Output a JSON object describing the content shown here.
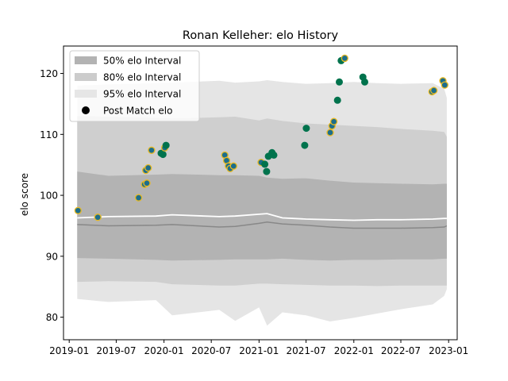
{
  "chart_data": {
    "type": "scatter",
    "title": "Ronan Kelleher: elo History",
    "xlabel": "",
    "ylabel": "elo score",
    "xlim": [
      "2018-12-10",
      "2023-02-03"
    ],
    "ylim": [
      76.3,
      124.5
    ],
    "x_ticks": [
      "2019-01-01",
      "2019-07-01",
      "2020-01-01",
      "2020-07-01",
      "2021-01-01",
      "2021-07-01",
      "2022-01-01",
      "2022-07-01",
      "2023-01-01"
    ],
    "x_tick_labels": [
      "2019-01",
      "2019-07",
      "2020-01",
      "2020-07",
      "2021-01",
      "2021-07",
      "2022-01",
      "2022-07",
      "2023-01"
    ],
    "y_ticks": [
      80,
      90,
      100,
      110,
      120
    ],
    "y_tick_labels": [
      "80",
      "90",
      "100",
      "110",
      "120"
    ],
    "grid": false,
    "legend_position": "top-left",
    "legend": [
      {
        "label": "50% elo Interval",
        "kind": "patch",
        "color": "#b3b3b3"
      },
      {
        "label": "80% elo Interval",
        "kind": "patch",
        "color": "#cccccc"
      },
      {
        "label": "95% elo Interval",
        "kind": "patch",
        "color": "#e6e6e6"
      },
      {
        "label": "Post Match elo",
        "kind": "marker",
        "color": "#000000"
      }
    ],
    "colors": {
      "band50": "#b3b3b3",
      "band80": "#cfcfcf",
      "band95": "#e5e5e5",
      "median_line": "#888888",
      "mean_line": "#ffffff",
      "point_fill_home": "#00734d",
      "point_fill_away": "#1c6e8c",
      "point_edge_away": "#e8b923"
    },
    "band_dates": [
      "2019-02-01",
      "2019-06-01",
      "2019-12-01",
      "2020-02-01",
      "2020-08-01",
      "2020-10-01",
      "2021-01-01",
      "2021-02-01",
      "2021-04-01",
      "2021-07-01",
      "2021-10-01",
      "2022-01-01",
      "2022-04-01",
      "2022-07-01",
      "2022-11-01",
      "2022-12-15",
      "2022-12-25"
    ],
    "band95_upper": [
      118,
      118.2,
      118.4,
      118.5,
      118.8,
      118.5,
      118.7,
      118.9,
      118.6,
      118.3,
      118.4,
      118.6,
      118.4,
      118.3,
      118.4,
      117.5,
      116
    ],
    "band95_lower": [
      83,
      82.5,
      82.8,
      80.3,
      81.2,
      79.4,
      81.6,
      78.6,
      80.8,
      80.3,
      79.3,
      79.9,
      80.6,
      81.3,
      82.1,
      83.5,
      84.6
    ],
    "band80_upper": [
      113,
      112.9,
      112.7,
      112.6,
      112.8,
      112.9,
      112.3,
      112.6,
      112.2,
      111.8,
      111.6,
      111.4,
      111.2,
      110.9,
      110.6,
      110.4,
      109.6
    ],
    "band80_lower": [
      85.8,
      85.9,
      85.8,
      85.4,
      85.2,
      85.2,
      85.5,
      85.5,
      85.4,
      85.3,
      85.2,
      85.2,
      85.1,
      85.2,
      85.2,
      85.2,
      85.2
    ],
    "band50_upper": [
      103.9,
      103.2,
      103.4,
      103.5,
      103.3,
      103.3,
      103.2,
      102.9,
      102.7,
      102.8,
      102.4,
      102.1,
      102.0,
      101.9,
      101.8,
      101.9,
      101.9
    ],
    "band50_lower": [
      89.7,
      89.6,
      89.4,
      89.3,
      89.4,
      89.5,
      89.5,
      89.5,
      89.6,
      89.4,
      89.3,
      89.4,
      89.4,
      89.5,
      89.5,
      89.6,
      89.6
    ],
    "mean_line": [
      96.3,
      96.5,
      96.6,
      96.8,
      96.5,
      96.6,
      96.9,
      97.0,
      96.3,
      96.1,
      96.0,
      95.9,
      96.0,
      96.0,
      96.1,
      96.2,
      96.2
    ],
    "median_line": [
      95.2,
      95.0,
      95.1,
      95.2,
      94.8,
      94.9,
      95.4,
      95.6,
      95.3,
      95.1,
      94.8,
      94.6,
      94.6,
      94.6,
      94.7,
      94.8,
      95.0
    ],
    "points": [
      {
        "x": "2019-02-04",
        "y": 97.5,
        "group": "away"
      },
      {
        "x": "2019-04-21",
        "y": 96.4,
        "group": "away"
      },
      {
        "x": "2019-09-25",
        "y": 99.6,
        "group": "away"
      },
      {
        "x": "2019-10-18",
        "y": 101.8,
        "group": "away"
      },
      {
        "x": "2019-10-23",
        "y": 104.1,
        "group": "away"
      },
      {
        "x": "2019-10-27",
        "y": 102.0,
        "group": "away"
      },
      {
        "x": "2019-11-01",
        "y": 104.5,
        "group": "away"
      },
      {
        "x": "2019-11-14",
        "y": 107.4,
        "group": "away"
      },
      {
        "x": "2019-12-21",
        "y": 106.9,
        "group": "home"
      },
      {
        "x": "2019-12-28",
        "y": 106.7,
        "group": "home"
      },
      {
        "x": "2020-01-04",
        "y": 107.8,
        "group": "away"
      },
      {
        "x": "2020-01-09",
        "y": 108.2,
        "group": "home"
      },
      {
        "x": "2020-08-22",
        "y": 106.6,
        "group": "away"
      },
      {
        "x": "2020-08-29",
        "y": 105.7,
        "group": "away"
      },
      {
        "x": "2020-09-05",
        "y": 104.8,
        "group": "away"
      },
      {
        "x": "2020-09-12",
        "y": 104.4,
        "group": "away"
      },
      {
        "x": "2020-09-25",
        "y": 104.8,
        "group": "away"
      },
      {
        "x": "2021-01-09",
        "y": 105.4,
        "group": "away"
      },
      {
        "x": "2021-01-23",
        "y": 105.1,
        "group": "home"
      },
      {
        "x": "2021-01-30",
        "y": 103.9,
        "group": "home"
      },
      {
        "x": "2021-02-06",
        "y": 106.4,
        "group": "home"
      },
      {
        "x": "2021-02-20",
        "y": 107.0,
        "group": "home"
      },
      {
        "x": "2021-02-27",
        "y": 106.6,
        "group": "home"
      },
      {
        "x": "2021-06-26",
        "y": 108.2,
        "group": "home"
      },
      {
        "x": "2021-07-02",
        "y": 111.0,
        "group": "home"
      },
      {
        "x": "2021-10-02",
        "y": 110.3,
        "group": "away"
      },
      {
        "x": "2021-10-09",
        "y": 111.4,
        "group": "away"
      },
      {
        "x": "2021-10-16",
        "y": 112.1,
        "group": "away"
      },
      {
        "x": "2021-10-30",
        "y": 115.6,
        "group": "home"
      },
      {
        "x": "2021-11-06",
        "y": 118.6,
        "group": "home"
      },
      {
        "x": "2021-11-13",
        "y": 122.1,
        "group": "home"
      },
      {
        "x": "2021-11-27",
        "y": 122.5,
        "group": "away"
      },
      {
        "x": "2022-02-05",
        "y": 119.4,
        "group": "home"
      },
      {
        "x": "2022-02-12",
        "y": 118.6,
        "group": "home"
      },
      {
        "x": "2022-10-29",
        "y": 117.0,
        "group": "away"
      },
      {
        "x": "2022-11-05",
        "y": 117.2,
        "group": "away"
      },
      {
        "x": "2022-12-10",
        "y": 118.8,
        "group": "away"
      },
      {
        "x": "2022-12-17",
        "y": 118.1,
        "group": "away"
      }
    ]
  }
}
